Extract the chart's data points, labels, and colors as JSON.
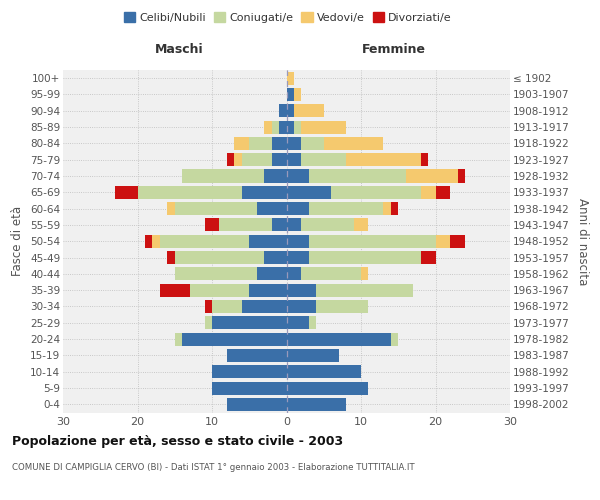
{
  "age_groups": [
    "100+",
    "95-99",
    "90-94",
    "85-89",
    "80-84",
    "75-79",
    "70-74",
    "65-69",
    "60-64",
    "55-59",
    "50-54",
    "45-49",
    "40-44",
    "35-39",
    "30-34",
    "25-29",
    "20-24",
    "15-19",
    "10-14",
    "5-9",
    "0-4"
  ],
  "birth_years": [
    "≤ 1902",
    "1903-1907",
    "1908-1912",
    "1913-1917",
    "1918-1922",
    "1923-1927",
    "1928-1932",
    "1933-1937",
    "1938-1942",
    "1943-1947",
    "1948-1952",
    "1953-1957",
    "1958-1962",
    "1963-1967",
    "1968-1972",
    "1973-1977",
    "1978-1982",
    "1983-1987",
    "1988-1992",
    "1993-1997",
    "1998-2002"
  ],
  "colors": {
    "celibi": "#3a6fa8",
    "coniugati": "#c5d8a0",
    "vedovi": "#f5c96e",
    "divorziati": "#cc1111"
  },
  "maschi": {
    "celibi": [
      0,
      0,
      1,
      1,
      2,
      2,
      3,
      6,
      4,
      2,
      5,
      3,
      4,
      5,
      6,
      10,
      14,
      8,
      10,
      10,
      8
    ],
    "coniugati": [
      0,
      0,
      0,
      1,
      3,
      4,
      11,
      14,
      11,
      7,
      12,
      12,
      11,
      8,
      4,
      1,
      1,
      0,
      0,
      0,
      0
    ],
    "vedovi": [
      0,
      0,
      0,
      1,
      2,
      1,
      0,
      0,
      1,
      0,
      1,
      0,
      0,
      0,
      0,
      0,
      0,
      0,
      0,
      0,
      0
    ],
    "divorziati": [
      0,
      0,
      0,
      0,
      0,
      1,
      0,
      3,
      0,
      2,
      1,
      1,
      0,
      4,
      1,
      0,
      0,
      0,
      0,
      0,
      0
    ]
  },
  "femmine": {
    "celibi": [
      0,
      1,
      1,
      1,
      2,
      2,
      3,
      6,
      3,
      2,
      3,
      3,
      2,
      4,
      4,
      3,
      14,
      7,
      10,
      11,
      8
    ],
    "coniugati": [
      0,
      0,
      0,
      1,
      3,
      6,
      13,
      12,
      10,
      7,
      17,
      15,
      8,
      13,
      7,
      1,
      1,
      0,
      0,
      0,
      0
    ],
    "vedovi": [
      1,
      1,
      4,
      6,
      8,
      10,
      7,
      2,
      1,
      2,
      2,
      0,
      1,
      0,
      0,
      0,
      0,
      0,
      0,
      0,
      0
    ],
    "divorziati": [
      0,
      0,
      0,
      0,
      0,
      1,
      1,
      2,
      1,
      0,
      2,
      2,
      0,
      0,
      0,
      0,
      0,
      0,
      0,
      0,
      0
    ]
  },
  "xlim": 30,
  "title": "Popolazione per età, sesso e stato civile - 2003",
  "subtitle": "COMUNE DI CAMPIGLIA CERVO (BI) - Dati ISTAT 1° gennaio 2003 - Elaborazione TUTTITALIA.IT",
  "ylabel_left": "Fasce di età",
  "ylabel_right": "Anni di nascita",
  "header_maschi": "Maschi",
  "header_femmine": "Femmine",
  "legend_labels": [
    "Celibi/Nubili",
    "Coniugati/e",
    "Vedovi/e",
    "Divorziati/e"
  ],
  "bg_color": "#f0f0f0",
  "grid_color": "#cccccc"
}
